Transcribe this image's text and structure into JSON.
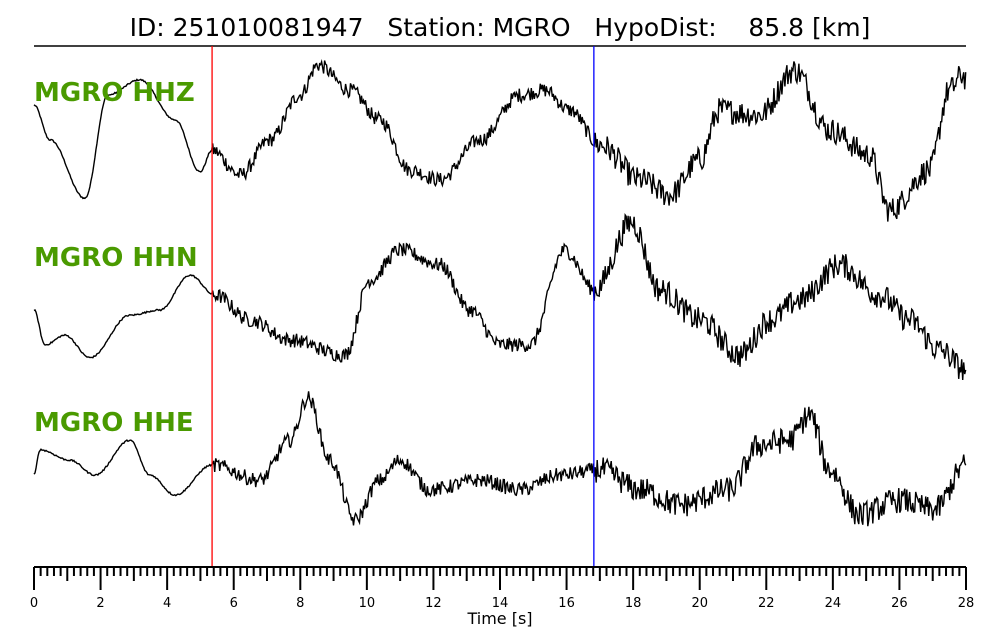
{
  "chart_data": {
    "type": "line",
    "title": "ID: 251010081947   Station: MGRO   HypoDist:    85.8 [km]",
    "xlabel": "Time [s]",
    "xlim": [
      0,
      28
    ],
    "x_ticks": [
      "0",
      "2",
      "4",
      "6",
      "8",
      "10",
      "12",
      "14",
      "16",
      "18",
      "20",
      "22",
      "24",
      "26",
      "28"
    ],
    "grid": false,
    "label_color": "#4a9a00",
    "trace_color": "#000000",
    "markers": [
      {
        "name": "P pick",
        "time": 5.35,
        "color": "#ff0000"
      },
      {
        "name": "S pick",
        "time": 16.82,
        "color": "#0000ff"
      }
    ],
    "series": [
      {
        "name": "MGRO HHZ",
        "points": [
          [
            0,
            0.375
          ],
          [
            0.48,
            -0.06
          ],
          [
            1.53,
            -0.79
          ],
          [
            2.22,
            0.5
          ],
          [
            3.18,
            0.69
          ],
          [
            4.24,
            0.19
          ],
          [
            4.99,
            -0.46
          ],
          [
            5.35,
            -0.19
          ],
          [
            6.19,
            -0.5
          ],
          [
            7.09,
            -0.06
          ],
          [
            7.99,
            0.5
          ],
          [
            8.53,
            0.875
          ],
          [
            9.49,
            0.56
          ],
          [
            10.39,
            0.19
          ],
          [
            11.3,
            -0.44
          ],
          [
            12.2,
            -0.56
          ],
          [
            13.4,
            -0.06
          ],
          [
            14.6,
            0.5
          ],
          [
            15.35,
            0.56
          ],
          [
            16.1,
            0.31
          ],
          [
            17.0,
            -0.125
          ],
          [
            18.2,
            -0.56
          ],
          [
            19.1,
            -0.75
          ],
          [
            20.0,
            -0.31
          ],
          [
            20.6,
            0.31
          ],
          [
            21.8,
            0.25
          ],
          [
            22.85,
            0.81
          ],
          [
            23.9,
            0.06
          ],
          [
            25.1,
            -0.25
          ],
          [
            25.7,
            -0.94
          ],
          [
            26.9,
            -0.44
          ],
          [
            27.5,
            0.56
          ],
          [
            27.9,
            0.75
          ],
          [
            28,
            0.7
          ]
        ]
      },
      {
        "name": "MGRO HHN",
        "points": [
          [
            0,
            -0.125
          ],
          [
            0.33,
            -0.56
          ],
          [
            0.93,
            -0.44
          ],
          [
            1.68,
            -0.72
          ],
          [
            2.88,
            -0.19
          ],
          [
            3.78,
            -0.125
          ],
          [
            4.69,
            0.31
          ],
          [
            5.44,
            0.06
          ],
          [
            6.49,
            -0.25
          ],
          [
            7.69,
            -0.5
          ],
          [
            9.34,
            -0.69
          ],
          [
            10.09,
            0.25
          ],
          [
            10.99,
            0.625
          ],
          [
            12.2,
            0.44
          ],
          [
            13.1,
            -0.125
          ],
          [
            14.0,
            -0.56
          ],
          [
            14.9,
            -0.56
          ],
          [
            15.95,
            0.625
          ],
          [
            16.85,
            0.125
          ],
          [
            17.96,
            0.975
          ],
          [
            18.8,
            0.125
          ],
          [
            20.0,
            -0.25
          ],
          [
            21.2,
            -0.69
          ],
          [
            22.1,
            -0.25
          ],
          [
            23.0,
            0
          ],
          [
            24.2,
            0.44
          ],
          [
            25.4,
            0.06
          ],
          [
            26.3,
            -0.25
          ],
          [
            27.2,
            -0.625
          ],
          [
            28,
            -0.875
          ]
        ]
      },
      {
        "name": "MGRO HHE",
        "points": [
          [
            0,
            -0.125
          ],
          [
            0.18,
            0.19
          ],
          [
            1.08,
            0.06
          ],
          [
            1.83,
            -0.125
          ],
          [
            2.88,
            0.31
          ],
          [
            3.48,
            -0.125
          ],
          [
            4.24,
            -0.375
          ],
          [
            5.35,
            0
          ],
          [
            6.79,
            -0.19
          ],
          [
            7.69,
            0.31
          ],
          [
            8.23,
            0.84
          ],
          [
            8.89,
            0.06
          ],
          [
            9.64,
            -0.69
          ],
          [
            10.39,
            -0.19
          ],
          [
            10.99,
            0.06
          ],
          [
            11.9,
            -0.31
          ],
          [
            13.4,
            -0.19
          ],
          [
            14.6,
            -0.31
          ],
          [
            15.8,
            -0.125
          ],
          [
            17.0,
            -0.06
          ],
          [
            18.2,
            -0.31
          ],
          [
            19.4,
            -0.5
          ],
          [
            20.9,
            -0.31
          ],
          [
            21.8,
            0.25
          ],
          [
            22.7,
            0.31
          ],
          [
            23.3,
            0.625
          ],
          [
            23.9,
            -0.06
          ],
          [
            24.8,
            -0.625
          ],
          [
            26.0,
            -0.44
          ],
          [
            27.05,
            -0.56
          ],
          [
            28,
            0
          ]
        ]
      }
    ]
  }
}
